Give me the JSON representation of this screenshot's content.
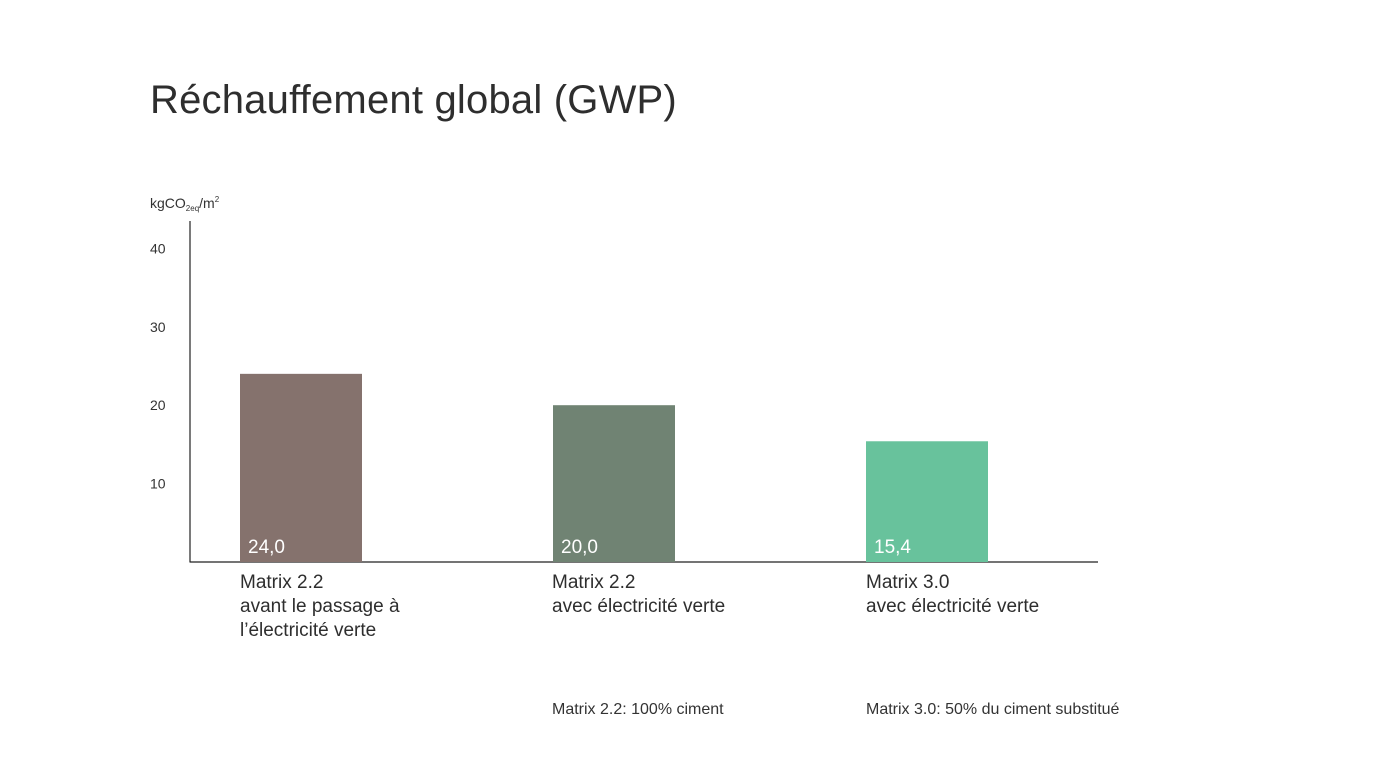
{
  "title": "Réchauffement global (GWP)",
  "unit": {
    "prefix": "kgCO",
    "sub": "2eq",
    "mid": "/m",
    "sup": "2"
  },
  "chart_data": {
    "type": "bar",
    "title": "Réchauffement global (GWP)",
    "ylabel": "kgCO2eq/m2",
    "xlabel": "",
    "ylim": [
      0,
      43
    ],
    "yticks": [
      10,
      20,
      30,
      40
    ],
    "grid": false,
    "categories": [
      "Matrix 2.2 avant le passage à l’électricité verte",
      "Matrix 2.2 avec électricité verte",
      "Matrix 3.0 avec électricité verte"
    ],
    "values": [
      24.0,
      20.0,
      15.4
    ],
    "value_labels": [
      "24,0",
      "20,0",
      "15,4"
    ],
    "colors": [
      "#85726d",
      "#708373",
      "#68c29c"
    ]
  },
  "category_labels": [
    {
      "line1": "Matrix 2.2",
      "line2": "avant le passage à",
      "line3": "l’électricité verte"
    },
    {
      "line1": "Matrix 2.2",
      "line2": "avec électricité verte",
      "line3": ""
    },
    {
      "line1": "Matrix 3.0",
      "line2": "avec électricité verte",
      "line3": ""
    }
  ],
  "footnotes": {
    "matrix22": "Matrix 2.2: 100% ciment",
    "matrix30": "Matrix 3.0: 50% du ciment substitué"
  }
}
